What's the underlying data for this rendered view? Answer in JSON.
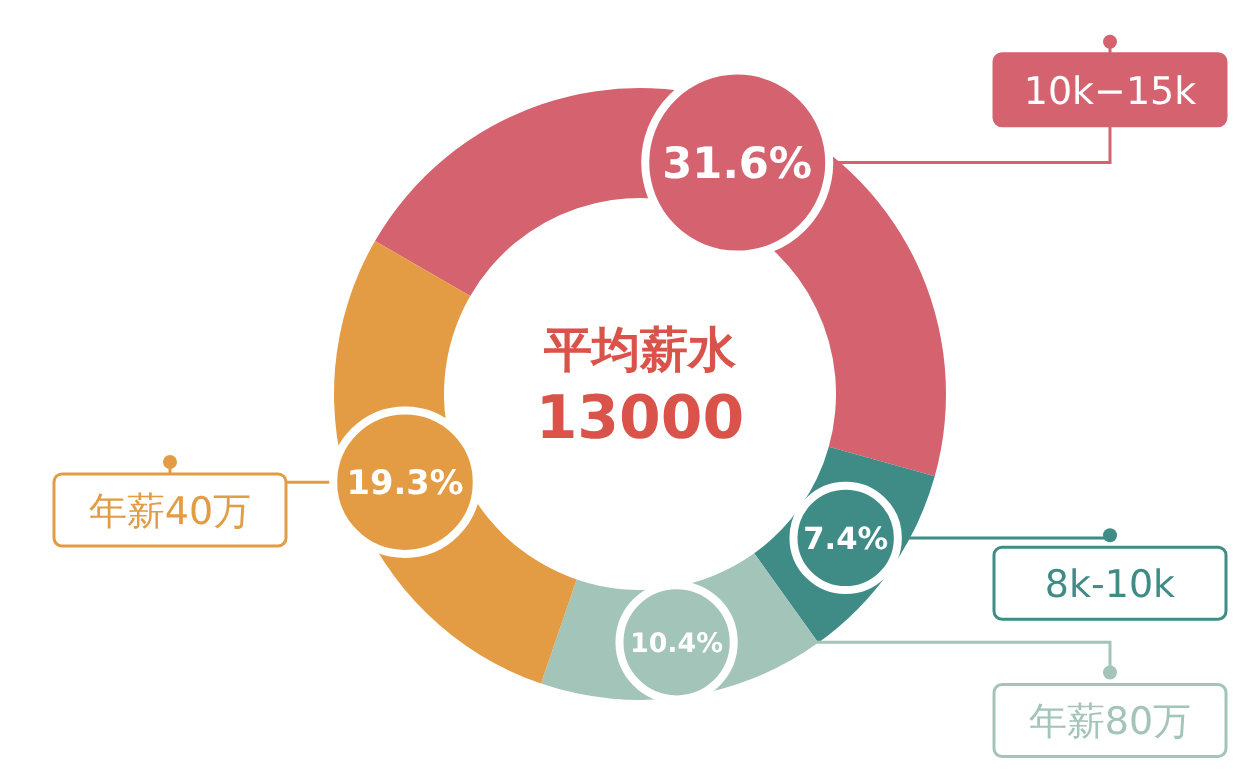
{
  "chart_data": {
    "type": "donut",
    "title": "平均薪水",
    "subtitle": "13000",
    "categories": [
      "10k−15k",
      "8k-10k",
      "年薪80万",
      "年薪40万"
    ],
    "values": [
      31.6,
      7.4,
      10.4,
      19.3
    ],
    "value_labels": [
      "31.6%",
      "7.4%",
      "10.4%",
      "19.3%"
    ],
    "colors": [
      "#d4626f",
      "#3f8c86",
      "#a3c4b8",
      "#e39c44"
    ],
    "legend": "right"
  }
}
